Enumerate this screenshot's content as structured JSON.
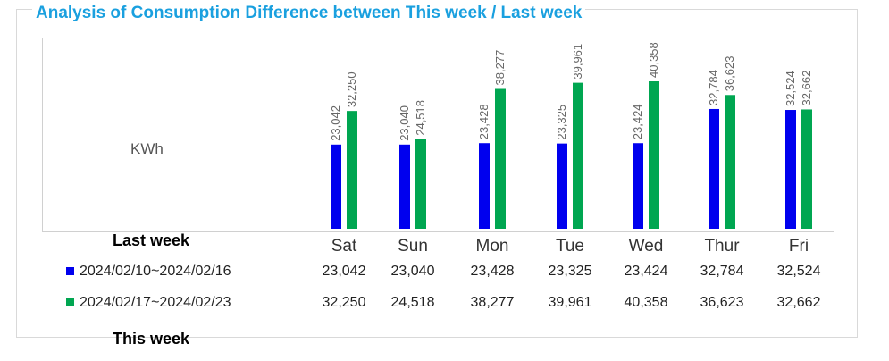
{
  "title": "Analysis of Consumption Difference between This week / Last week",
  "unit_label": "KWh",
  "captions": {
    "last_week": "Last week",
    "this_week": "This week"
  },
  "colors": {
    "last_week": "#0000ee",
    "this_week": "#00a651",
    "title": "#1aa0df"
  },
  "chart_data": {
    "type": "bar",
    "title": "Analysis of Consumption Difference between This week / Last week",
    "ylabel": "KWh",
    "ylim": [
      0,
      40358
    ],
    "legend": "table-below",
    "categories": [
      "Sat",
      "Sun",
      "Mon",
      "Tue",
      "Wed",
      "Thur",
      "Fri"
    ],
    "series": [
      {
        "name": "2024/02/10~2024/02/16",
        "display_values": [
          "23,042",
          "23,040",
          "23,428",
          "23,325",
          "23,424",
          "32,784",
          "32,524"
        ],
        "values": [
          23042,
          23040,
          23428,
          23325,
          23424,
          32784,
          32524
        ]
      },
      {
        "name": "2024/02/17~2024/02/23",
        "display_values": [
          "32,250",
          "24,518",
          "38,277",
          "39,961",
          "40,358",
          "36,623",
          "32,662"
        ],
        "values": [
          32250,
          24518,
          38277,
          39961,
          40358,
          36623,
          32662
        ]
      }
    ]
  }
}
